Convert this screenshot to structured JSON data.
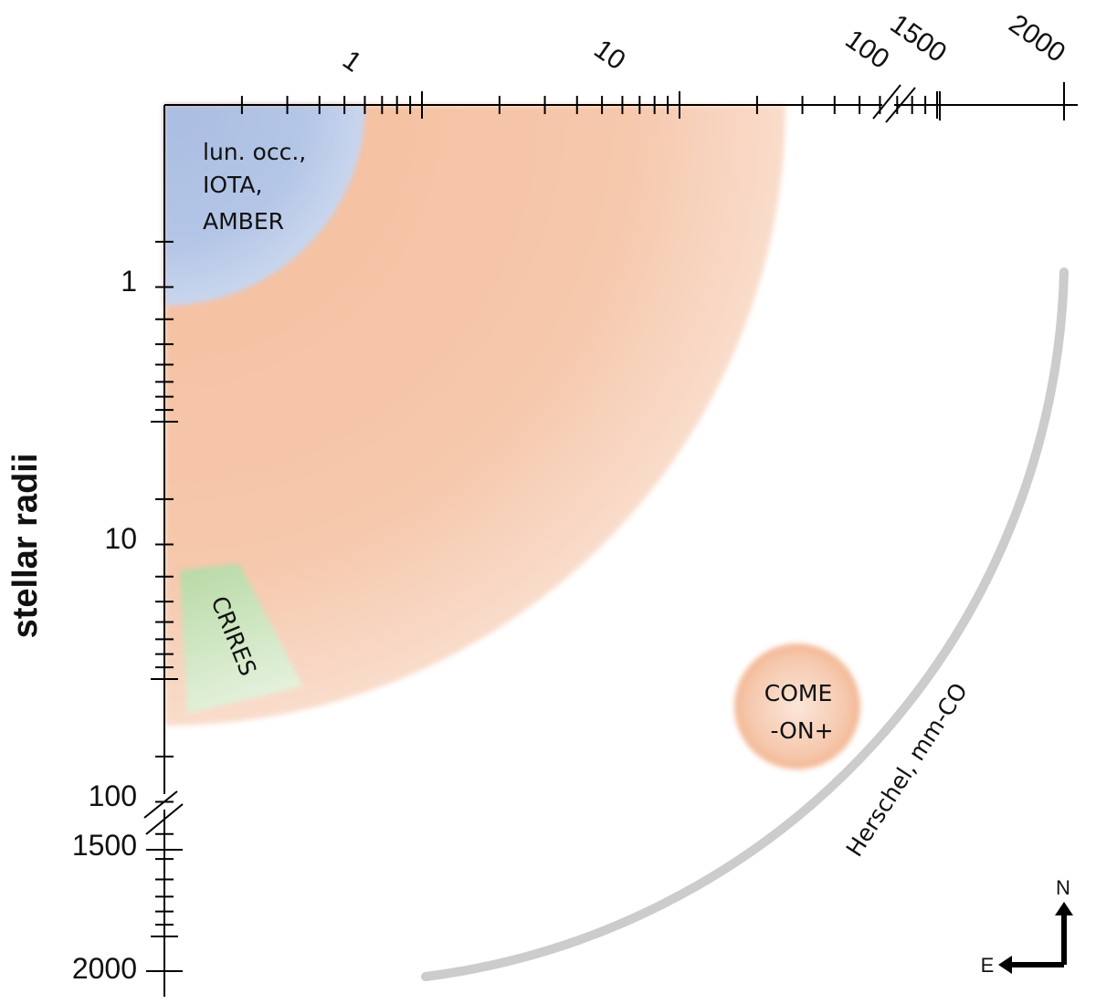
{
  "top_axis": {
    "labels": {
      "one": "1",
      "ten": "10",
      "hundred": "100",
      "fifteen_hundred": "1500",
      "two_thousand": "2000"
    }
  },
  "left_axis": {
    "title": "stellar radii",
    "labels": {
      "one": "1",
      "ten": "10",
      "hundred": "100",
      "fifteen_hundred": "1500",
      "two_thousand": "2000"
    }
  },
  "regions": {
    "inner": {
      "lines": [
        "lun. occ.,",
        "IOTA,",
        "AMBER"
      ],
      "color": "#b4c6e6"
    },
    "crires": {
      "label": "CRIRES",
      "color": "#c6e2b8"
    },
    "wide": {
      "color": "#f4c4a6"
    },
    "come_on": {
      "lines": [
        "COME",
        "-ON+"
      ],
      "color": "#f4c4a6"
    },
    "herschel": {
      "label": "Herschel, mm-CO",
      "color": "#cccccc"
    }
  },
  "compass": {
    "north": "N",
    "east": "E"
  }
}
